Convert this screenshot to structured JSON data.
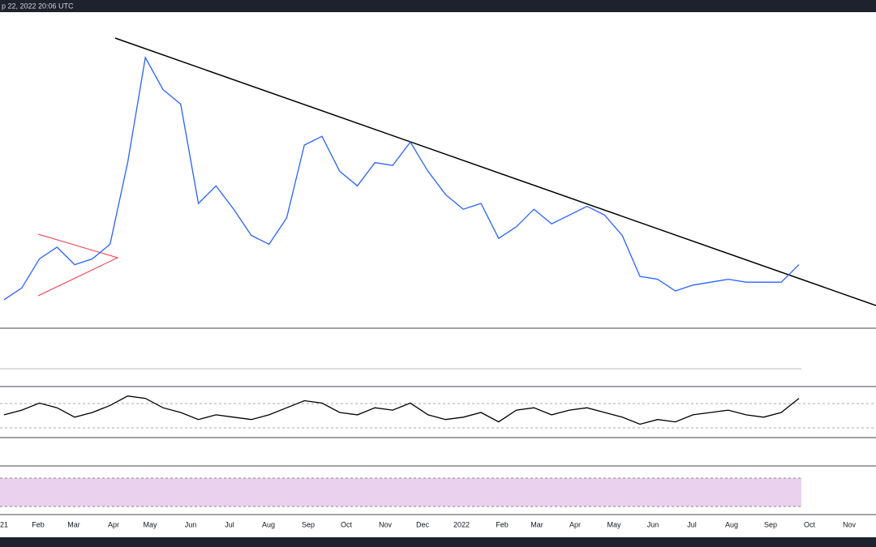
{
  "header": {
    "timestamp": "p 22, 2022 20:06 UTC"
  },
  "chart_data": {
    "type": "line",
    "color": "#2962ff",
    "ylim": [
      0,
      100
    ],
    "values": [
      7,
      11,
      21,
      25,
      19,
      21,
      26,
      54,
      90,
      79,
      74,
      40,
      46,
      38,
      29,
      26,
      35,
      60,
      63,
      51,
      46,
      54,
      53,
      61,
      51,
      43,
      38,
      40,
      28,
      32,
      38,
      33,
      36,
      39,
      36,
      29,
      15,
      14,
      10,
      12,
      13,
      14,
      13,
      13,
      13,
      19
    ],
    "oscillator": {
      "color": "#000000",
      "ylim": [
        0,
        100
      ],
      "values": [
        45,
        55,
        70,
        60,
        40,
        50,
        65,
        85,
        80,
        60,
        50,
        35,
        45,
        40,
        35,
        45,
        60,
        75,
        70,
        50,
        45,
        60,
        55,
        70,
        45,
        35,
        40,
        50,
        30,
        55,
        60,
        45,
        55,
        60,
        50,
        40,
        25,
        35,
        30,
        45,
        50,
        55,
        45,
        40,
        50,
        80
      ]
    },
    "x_labels": [
      "21",
      "Feb",
      "Mar",
      "Apr",
      "May",
      "Jun",
      "Jul",
      "Aug",
      "Sep",
      "Oct",
      "Nov",
      "Dec",
      "2022",
      "Feb",
      "Mar",
      "Apr",
      "May",
      "Jun",
      "Jul",
      "Aug",
      "Sep",
      "Oct",
      "Nov"
    ]
  }
}
